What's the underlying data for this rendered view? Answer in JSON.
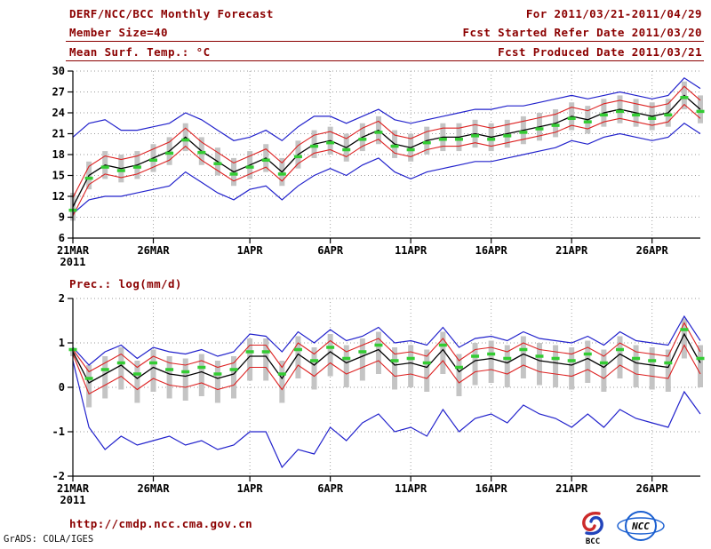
{
  "header": {
    "title": "DERF/NCC/BCC Monthly Forecast",
    "forecast_period": "For 2011/03/21-2011/04/29",
    "member_size": "Member Size=40",
    "refer_date": "Fcst Started Refer Date 2011/03/20",
    "produced_date": "Fcst Produced Date 2011/03/21"
  },
  "footer": {
    "url": "http://cmdp.ncc.cma.gov.cn",
    "grads_credit": "GrADS: COLA/IGES",
    "bcc_label": "BCC",
    "ncc_label": "NCC"
  },
  "colors": {
    "header_text": "#8b0000",
    "ensemble_minmax_line": "#2222cc",
    "ensemble_std_line": "#dd2222",
    "ensemble_mean_line": "#000000",
    "highlight_dash": "#33cc33",
    "spread_bar": "#c4c4c4",
    "grid": "#9a9a9a"
  },
  "chart_data": [
    {
      "type": "line",
      "title": "Mean Surf. Temp.: °C",
      "ylabel": "°C",
      "ylim": [
        6,
        30
      ],
      "yticks": [
        6,
        9,
        12,
        15,
        18,
        21,
        24,
        27,
        30
      ],
      "grid": "dotted",
      "legend": "none",
      "n_points": 40,
      "xticks": [
        {
          "index": 0,
          "label": "21MAR",
          "sublabel": "2011"
        },
        {
          "index": 5,
          "label": "26MAR"
        },
        {
          "index": 11,
          "label": "1APR"
        },
        {
          "index": 16,
          "label": "6APR"
        },
        {
          "index": 21,
          "label": "11APR"
        },
        {
          "index": 26,
          "label": "16APR"
        },
        {
          "index": 31,
          "label": "21APR"
        },
        {
          "index": 36,
          "label": "26APR"
        }
      ],
      "series": [
        {
          "name": "ensemble-max",
          "color": "#2222cc",
          "width": 1.2,
          "values": [
            20.5,
            22.5,
            23.0,
            21.5,
            21.5,
            22.0,
            22.5,
            24.0,
            23.0,
            21.5,
            20.0,
            20.5,
            21.5,
            20.0,
            22.0,
            23.5,
            23.5,
            22.5,
            23.5,
            24.5,
            23.0,
            22.5,
            23.0,
            23.5,
            24.0,
            24.5,
            24.5,
            25.0,
            25.0,
            25.5,
            26.0,
            26.5,
            26.0,
            26.5,
            27.0,
            26.5,
            26.0,
            26.5,
            29.0,
            27.5
          ]
        },
        {
          "name": "ensemble-min",
          "color": "#2222cc",
          "width": 1.2,
          "values": [
            9.5,
            11.5,
            12.0,
            12.0,
            12.5,
            13.0,
            13.5,
            15.5,
            14.0,
            12.5,
            11.5,
            13.0,
            13.5,
            11.5,
            13.5,
            15.0,
            16.0,
            15.0,
            16.5,
            17.5,
            15.5,
            14.5,
            15.5,
            16.0,
            16.5,
            17.0,
            17.0,
            17.5,
            18.0,
            18.5,
            19.0,
            20.0,
            19.5,
            20.5,
            21.0,
            20.5,
            20.0,
            20.5,
            22.5,
            21.0
          ]
        },
        {
          "name": "plus-1std",
          "color": "#dd2222",
          "width": 1.1,
          "values": [
            11.8,
            16.3,
            17.8,
            17.3,
            17.8,
            18.8,
            19.8,
            21.8,
            19.8,
            18.3,
            16.8,
            17.8,
            18.8,
            16.8,
            19.3,
            20.8,
            21.3,
            20.3,
            21.8,
            22.8,
            20.8,
            20.3,
            21.3,
            21.8,
            21.8,
            22.3,
            21.8,
            22.3,
            22.8,
            23.3,
            23.8,
            24.8,
            24.3,
            25.3,
            25.8,
            25.3,
            24.8,
            25.3,
            27.8,
            25.8
          ]
        },
        {
          "name": "minus-1std",
          "color": "#dd2222",
          "width": 1.1,
          "values": [
            9.2,
            13.7,
            15.2,
            14.7,
            15.2,
            16.2,
            17.2,
            19.2,
            17.2,
            15.7,
            14.2,
            15.2,
            16.2,
            14.2,
            16.7,
            18.2,
            18.7,
            17.7,
            19.2,
            20.2,
            18.2,
            17.7,
            18.7,
            19.2,
            19.2,
            19.7,
            19.2,
            19.7,
            20.2,
            20.7,
            21.2,
            22.2,
            21.7,
            22.7,
            23.2,
            22.7,
            22.2,
            22.7,
            25.2,
            23.2
          ]
        },
        {
          "name": "ensemble-mean",
          "color": "#000000",
          "width": 1.3,
          "values": [
            10.5,
            15.0,
            16.5,
            16.0,
            16.5,
            17.5,
            18.5,
            20.5,
            18.5,
            17.0,
            15.5,
            16.5,
            17.5,
            15.5,
            18.0,
            19.5,
            20.0,
            19.0,
            20.5,
            21.5,
            19.5,
            19.0,
            20.0,
            20.5,
            20.5,
            21.0,
            20.5,
            21.0,
            21.5,
            22.0,
            22.5,
            23.5,
            23.0,
            24.0,
            24.5,
            24.0,
            23.5,
            24.0,
            26.5,
            24.5
          ]
        }
      ],
      "markers": {
        "name": "highlight-dash",
        "color": "#33cc33",
        "values": [
          10.0,
          14.6,
          16.2,
          15.7,
          16.2,
          17.2,
          18.2,
          20.1,
          18.3,
          16.7,
          15.2,
          16.2,
          17.2,
          15.2,
          17.7,
          19.2,
          19.7,
          18.7,
          20.2,
          21.2,
          19.2,
          18.7,
          19.7,
          20.2,
          20.2,
          20.7,
          20.2,
          20.7,
          21.2,
          21.7,
          22.2,
          23.2,
          22.7,
          23.7,
          24.2,
          23.7,
          23.2,
          23.7,
          26.2,
          24.2
        ]
      },
      "bars": {
        "name": "spread-bar",
        "color": "#c4c4c4",
        "top": [
          12.5,
          17.0,
          18.5,
          18.0,
          18.5,
          19.5,
          20.5,
          22.5,
          20.5,
          19.0,
          17.5,
          18.5,
          19.5,
          17.5,
          20.0,
          21.5,
          22.0,
          21.0,
          22.5,
          23.5,
          21.5,
          21.0,
          22.0,
          22.5,
          22.5,
          23.0,
          22.5,
          23.0,
          23.5,
          24.0,
          24.5,
          25.5,
          25.0,
          26.0,
          26.5,
          26.0,
          25.5,
          26.0,
          28.5,
          26.5
        ],
        "bottom": [
          8.5,
          13.0,
          14.5,
          14.0,
          14.5,
          15.5,
          16.5,
          18.5,
          16.5,
          15.0,
          13.5,
          14.5,
          15.5,
          13.5,
          16.0,
          17.5,
          18.0,
          17.0,
          18.5,
          19.5,
          17.5,
          17.0,
          18.0,
          18.5,
          18.5,
          19.0,
          18.5,
          19.0,
          19.5,
          20.0,
          20.5,
          21.5,
          21.0,
          22.0,
          22.5,
          22.0,
          21.5,
          22.0,
          24.5,
          22.5
        ]
      }
    },
    {
      "type": "line",
      "title": "Prec.: log(mm/d)",
      "ylabel": "log(mm/d)",
      "ylim": [
        -2,
        2
      ],
      "yticks": [
        -2,
        -1,
        0,
        1,
        2
      ],
      "grid": "dotted",
      "legend": "none",
      "n_points": 40,
      "xticks": [
        {
          "index": 0,
          "label": "21MAR",
          "sublabel": "2011"
        },
        {
          "index": 5,
          "label": "26MAR"
        },
        {
          "index": 11,
          "label": "1APR"
        },
        {
          "index": 16,
          "label": "6APR"
        },
        {
          "index": 21,
          "label": "11APR"
        },
        {
          "index": 26,
          "label": "16APR"
        },
        {
          "index": 31,
          "label": "21APR"
        },
        {
          "index": 36,
          "label": "26APR"
        }
      ],
      "series": [
        {
          "name": "ensemble-max",
          "color": "#2222cc",
          "width": 1.2,
          "values": [
            0.9,
            0.5,
            0.8,
            0.95,
            0.65,
            0.9,
            0.8,
            0.75,
            0.85,
            0.7,
            0.8,
            1.2,
            1.15,
            0.8,
            1.25,
            1.0,
            1.3,
            1.05,
            1.15,
            1.35,
            1.0,
            1.05,
            0.95,
            1.35,
            0.9,
            1.1,
            1.15,
            1.05,
            1.25,
            1.1,
            1.05,
            1.0,
            1.15,
            0.95,
            1.25,
            1.05,
            1.0,
            0.95,
            1.6,
            1.05
          ]
        },
        {
          "name": "ensemble-min",
          "color": "#2222cc",
          "width": 1.2,
          "values": [
            0.6,
            -0.9,
            -1.4,
            -1.1,
            -1.3,
            -1.2,
            -1.1,
            -1.3,
            -1.2,
            -1.4,
            -1.3,
            -1.0,
            -1.0,
            -1.8,
            -1.4,
            -1.5,
            -0.9,
            -1.2,
            -0.8,
            -0.6,
            -1.0,
            -0.9,
            -1.1,
            -0.5,
            -1.0,
            -0.7,
            -0.6,
            -0.8,
            -0.4,
            -0.6,
            -0.7,
            -0.9,
            -0.6,
            -0.9,
            -0.5,
            -0.7,
            -0.8,
            -0.9,
            -0.1,
            -0.6
          ]
        },
        {
          "name": "plus-1std",
          "color": "#dd2222",
          "width": 1.1,
          "values": [
            0.85,
            0.35,
            0.55,
            0.75,
            0.45,
            0.7,
            0.55,
            0.5,
            0.6,
            0.45,
            0.55,
            0.95,
            0.95,
            0.45,
            1.0,
            0.75,
            1.05,
            0.8,
            0.95,
            1.1,
            0.75,
            0.8,
            0.7,
            1.1,
            0.6,
            0.85,
            0.9,
            0.8,
            1.0,
            0.85,
            0.8,
            0.75,
            0.9,
            0.7,
            1.0,
            0.8,
            0.75,
            0.7,
            1.45,
            0.8
          ]
        },
        {
          "name": "minus-1std",
          "color": "#dd2222",
          "width": 1.1,
          "values": [
            0.75,
            -0.15,
            0.05,
            0.25,
            -0.05,
            0.2,
            0.05,
            0.0,
            0.1,
            -0.05,
            0.05,
            0.45,
            0.45,
            -0.05,
            0.5,
            0.25,
            0.55,
            0.3,
            0.45,
            0.6,
            0.25,
            0.3,
            0.2,
            0.6,
            0.1,
            0.35,
            0.4,
            0.3,
            0.5,
            0.35,
            0.3,
            0.25,
            0.4,
            0.2,
            0.5,
            0.3,
            0.25,
            0.2,
            0.95,
            0.3
          ]
        },
        {
          "name": "ensemble-mean",
          "color": "#000000",
          "width": 1.3,
          "values": [
            0.8,
            0.1,
            0.3,
            0.5,
            0.2,
            0.45,
            0.3,
            0.25,
            0.35,
            0.2,
            0.3,
            0.7,
            0.7,
            0.2,
            0.75,
            0.5,
            0.8,
            0.55,
            0.7,
            0.85,
            0.5,
            0.55,
            0.45,
            0.85,
            0.35,
            0.6,
            0.65,
            0.55,
            0.75,
            0.6,
            0.55,
            0.5,
            0.65,
            0.45,
            0.75,
            0.55,
            0.5,
            0.45,
            1.2,
            0.55
          ]
        }
      ],
      "markers": {
        "name": "highlight-dash",
        "color": "#33cc33",
        "values": [
          0.85,
          0.2,
          0.4,
          0.55,
          0.3,
          0.55,
          0.4,
          0.35,
          0.45,
          0.3,
          0.4,
          0.8,
          0.8,
          0.3,
          0.85,
          0.6,
          0.9,
          0.65,
          0.8,
          0.95,
          0.6,
          0.65,
          0.55,
          0.95,
          0.45,
          0.7,
          0.75,
          0.65,
          0.85,
          0.7,
          0.65,
          0.6,
          0.75,
          0.55,
          0.85,
          0.65,
          0.6,
          0.55,
          1.3,
          0.65
        ]
      },
      "bars": {
        "name": "spread-bar",
        "color": "#c4c4c4",
        "top": [
          0.85,
          0.5,
          0.7,
          0.9,
          0.6,
          0.85,
          0.7,
          0.65,
          0.75,
          0.6,
          0.7,
          1.1,
          1.1,
          0.6,
          1.15,
          0.9,
          1.2,
          0.95,
          1.1,
          1.25,
          0.9,
          0.95,
          0.85,
          1.25,
          0.75,
          1.0,
          1.05,
          0.95,
          1.15,
          1.0,
          0.95,
          0.9,
          1.05,
          0.85,
          1.15,
          0.95,
          0.9,
          0.85,
          1.55,
          0.95
        ],
        "bottom": [
          0.7,
          -0.45,
          -0.25,
          -0.05,
          -0.35,
          -0.1,
          -0.25,
          -0.3,
          -0.2,
          -0.35,
          -0.25,
          0.15,
          0.15,
          -0.35,
          0.2,
          -0.05,
          0.25,
          0.0,
          0.15,
          0.3,
          -0.05,
          0.0,
          -0.1,
          0.3,
          -0.2,
          0.05,
          0.1,
          0.0,
          0.2,
          0.05,
          0.0,
          -0.05,
          0.1,
          -0.1,
          0.2,
          0.0,
          -0.05,
          -0.1,
          0.65,
          0.0
        ]
      }
    }
  ]
}
